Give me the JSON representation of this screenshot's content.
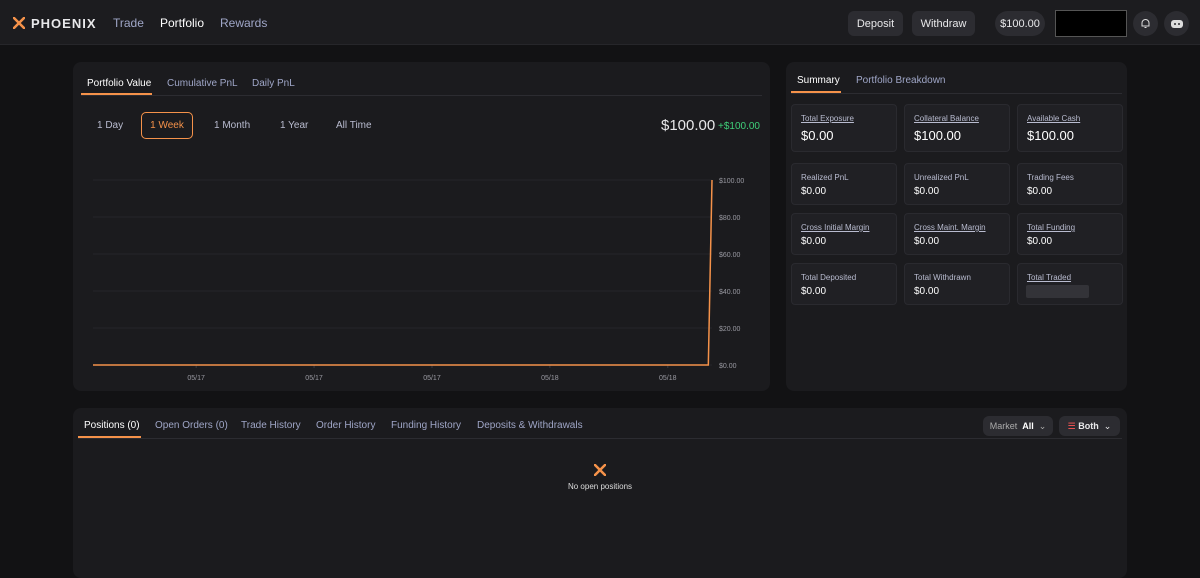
{
  "nav": {
    "brand": "PHOENIX",
    "links": [
      "Trade",
      "Portfolio",
      "Rewards"
    ],
    "buttons": [
      "Deposit",
      "Withdraw"
    ],
    "balance": "$100.00"
  },
  "portfolio": {
    "tabs": [
      "Portfolio Value",
      "Cumulative PnL",
      "Daily PnL"
    ],
    "ranges": [
      "1 Day",
      "1 Week",
      "1 Month",
      "1 Year",
      "All Time"
    ],
    "value": "$100.00",
    "change": "+$100.00"
  },
  "chart_data": {
    "type": "line",
    "x": [
      0,
      167,
      168
    ],
    "xlim": [
      0,
      168
    ],
    "xticks": [
      {
        "value": 28,
        "label": "05/17"
      },
      {
        "value": 60,
        "label": "05/17"
      },
      {
        "value": 92,
        "label": "05/17"
      },
      {
        "value": 124,
        "label": "05/18"
      },
      {
        "value": 156,
        "label": "05/18"
      }
    ],
    "series": [
      {
        "color": "#f5924a",
        "values": [
          0,
          0,
          100
        ]
      }
    ],
    "ylim": [
      0,
      100
    ],
    "yticks": [
      {
        "value": 0,
        "label": "$0.00"
      },
      {
        "value": 20,
        "label": "$20.00"
      },
      {
        "value": 40,
        "label": "$40.00"
      },
      {
        "value": 60,
        "label": "$60.00"
      },
      {
        "value": 80,
        "label": "$80.00"
      },
      {
        "value": 100,
        "label": "$100.00"
      }
    ],
    "grid": true
  },
  "summary": {
    "tabs": [
      "Summary",
      "Portfolio Breakdown"
    ],
    "cards": [
      {
        "label": "Total Exposure",
        "value": "$0.00",
        "underline": true
      },
      {
        "label": "Collateral Balance",
        "value": "$100.00",
        "underline": true
      },
      {
        "label": "Available Cash",
        "value": "$100.00",
        "underline": true
      },
      {
        "label": "Realized PnL",
        "value": "$0.00"
      },
      {
        "label": "Unrealized PnL",
        "value": "$0.00"
      },
      {
        "label": "Trading Fees",
        "value": "$0.00"
      },
      {
        "label": "Cross Initial Margin",
        "value": "$0.00",
        "underline": true
      },
      {
        "label": "Cross Maint. Margin",
        "value": "$0.00",
        "underline": true
      },
      {
        "label": "Total Funding",
        "value": "$0.00",
        "underline": true
      },
      {
        "label": "Total Deposited",
        "value": "$0.00"
      },
      {
        "label": "Total Withdrawn",
        "value": "$0.00"
      },
      {
        "label": "Total Traded",
        "underline": true
      }
    ]
  },
  "positions": {
    "tabs": [
      "Positions (0)",
      "Open Orders (0)",
      "Trade History",
      "Order History",
      "Funding History",
      "Deposits & Withdrawals"
    ],
    "market_label": "Market",
    "market_value": "All",
    "side": "Both",
    "empty": "No open positions"
  }
}
